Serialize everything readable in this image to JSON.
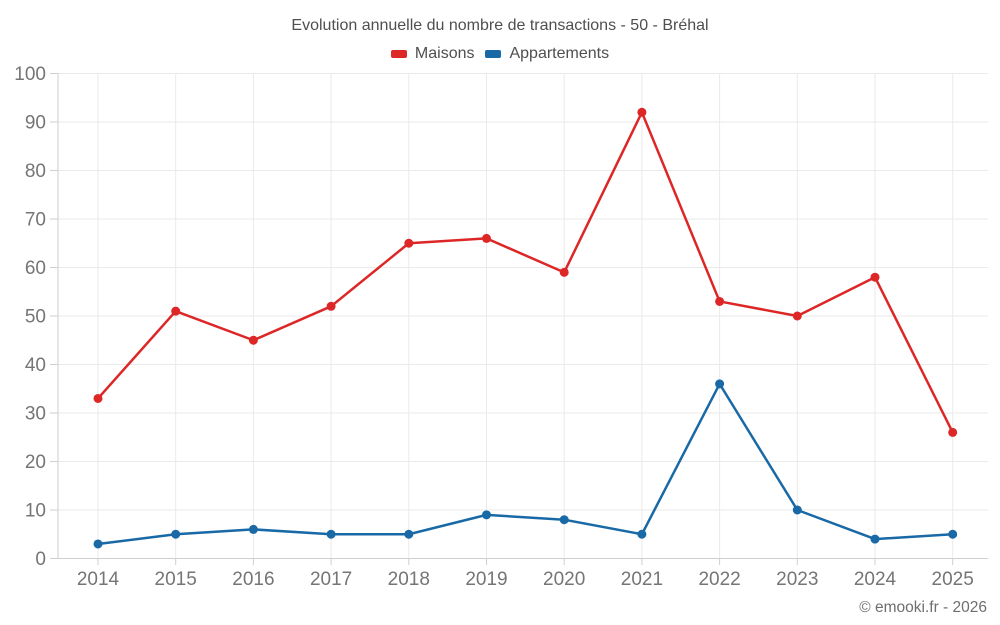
{
  "title": "Evolution annuelle du nombre de transactions - 50 - Bréhal",
  "legend": {
    "items": [
      {
        "label": "Maisons",
        "color": "#dd2727"
      },
      {
        "label": "Appartements",
        "color": "#1869a6"
      }
    ]
  },
  "footer": "© emooki.fr - 2026",
  "axes": {
    "y_tick_labels": [
      "0",
      "10",
      "20",
      "30",
      "40",
      "50",
      "60",
      "70",
      "80",
      "90",
      "100"
    ],
    "x_tick_labels": [
      "2014",
      "2015",
      "2016",
      "2017",
      "2018",
      "2019",
      "2020",
      "2021",
      "2022",
      "2023",
      "2024",
      "2025"
    ]
  },
  "chart_data": {
    "type": "line",
    "title": "Evolution annuelle du nombre de transactions - 50 - Bréhal",
    "categories": [
      2014,
      2015,
      2016,
      2017,
      2018,
      2019,
      2020,
      2021,
      2022,
      2023,
      2024,
      2025
    ],
    "series": [
      {
        "name": "Maisons",
        "color": "#dd2727",
        "values": [
          33,
          51,
          45,
          52,
          65,
          66,
          59,
          92,
          53,
          50,
          58,
          26
        ]
      },
      {
        "name": "Appartements",
        "color": "#1869a6",
        "values": [
          3,
          5,
          6,
          5,
          5,
          9,
          8,
          5,
          36,
          10,
          4,
          5
        ]
      }
    ],
    "xlabel": "",
    "ylabel": "",
    "ylim": [
      0,
      100
    ],
    "ytick_step": 10,
    "grid": true,
    "legend_position": "top",
    "marker": "circle",
    "colors_text": {
      "axis_labels": "#757575",
      "title": "#4f4f4f",
      "footer": "#6e6e6e"
    },
    "colors_lines": {
      "gridline": "#eaeaea",
      "axis_line": "#cfcfcf"
    }
  }
}
